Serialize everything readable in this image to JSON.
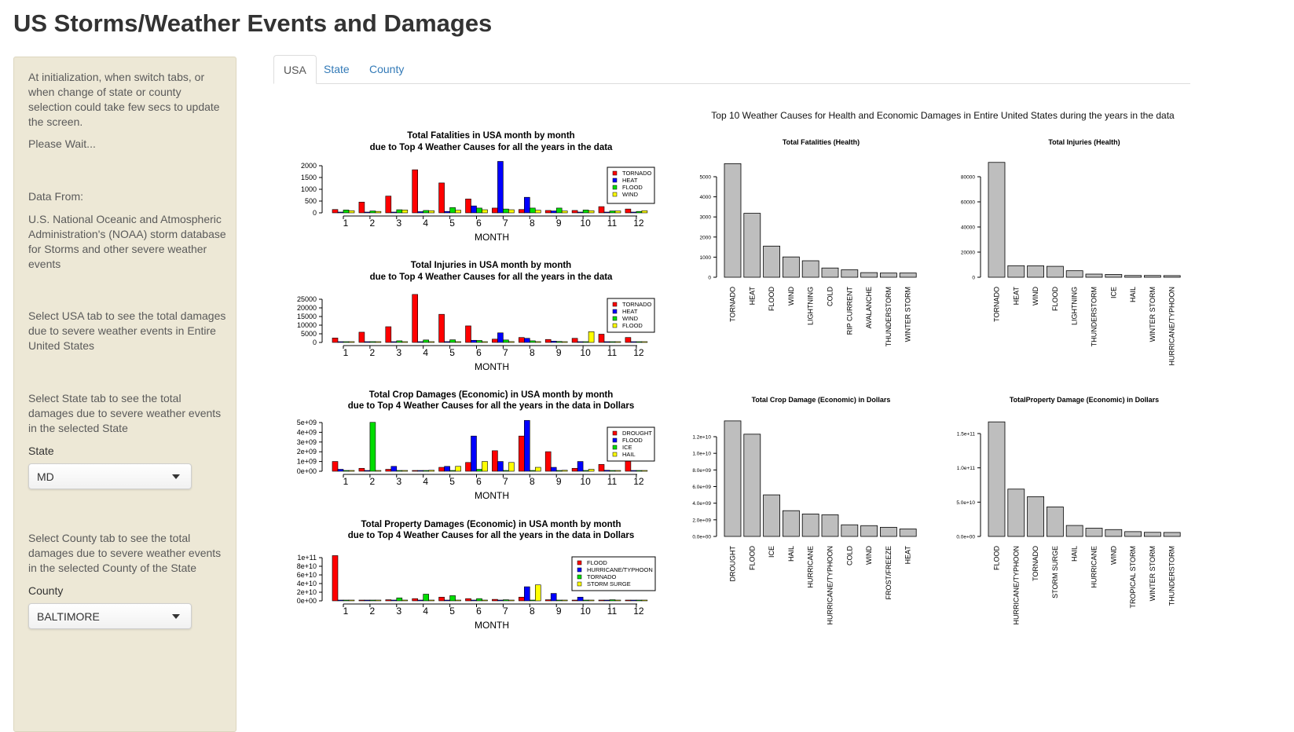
{
  "page": {
    "title": "US Storms/Weather Events and Damages"
  },
  "sidebar": {
    "init_note": "At initialization, when switch tabs, or when change of state or county selection could take few secs to update the screen.",
    "wait_note": "Please Wait...",
    "data_from_label": "Data From:",
    "data_source": "U.S. National Oceanic and Atmospheric Administration's (NOAA) storm database for Storms and other severe weather events",
    "usa_note": "Select USA tab to see the total damages due to severe weather events in Entire United States",
    "state_note": "Select State tab to see the total damages due to severe weather events in the selected State",
    "state_label": "State",
    "state_value": "MD",
    "county_note": "Select County tab to see the total damages due to severe weather events in the selected County of the State",
    "county_label": "County",
    "county_value": "BALTIMORE"
  },
  "tabs": [
    {
      "label": "USA",
      "active": true
    },
    {
      "label": "State",
      "active": false
    },
    {
      "label": "County",
      "active": false
    }
  ],
  "main": {
    "caption": "Top 10 Weather Causes for Health and Economic Damages in Entire United States during the years in the data"
  },
  "colors": {
    "red": "#ff0000",
    "blue": "#0000ff",
    "green": "#00dd00",
    "yellow": "#ffff00",
    "gray": "#bebebe"
  },
  "chart_data": [
    {
      "type": "bar",
      "title": "Total Fatalities in USA month by month\ndue to Top 4 Weather Causes for all the years in the data",
      "xlabel": "MONTH",
      "categories": [
        "1",
        "2",
        "3",
        "4",
        "5",
        "6",
        "7",
        "8",
        "9",
        "10",
        "11",
        "12"
      ],
      "yticks": [
        "2000",
        "1500",
        "1000",
        "500",
        "0"
      ],
      "ylim": [
        0,
        2100
      ],
      "series": [
        {
          "name": "TORNADO",
          "color": "red",
          "values": [
            140,
            450,
            700,
            1800,
            1250,
            580,
            200,
            140,
            100,
            100,
            260,
            160
          ]
        },
        {
          "name": "HEAT",
          "color": "blue",
          "values": [
            20,
            30,
            30,
            50,
            60,
            290,
            2150,
            650,
            80,
            30,
            20,
            20
          ]
        },
        {
          "name": "FLOOD",
          "color": "green",
          "values": [
            120,
            80,
            130,
            100,
            220,
            200,
            160,
            200,
            200,
            120,
            80,
            60
          ]
        },
        {
          "name": "WIND",
          "color": "yellow",
          "values": [
            90,
            60,
            120,
            90,
            110,
            130,
            130,
            110,
            80,
            90,
            80,
            90
          ]
        }
      ]
    },
    {
      "type": "bar",
      "title": "Total Injuries in USA month by month\ndue to Top 4 Weather Causes for all the years in the data",
      "xlabel": "MONTH",
      "categories": [
        "1",
        "2",
        "3",
        "4",
        "5",
        "6",
        "7",
        "8",
        "9",
        "10",
        "11",
        "12"
      ],
      "yticks": [
        "25000",
        "20000",
        "15000",
        "10000",
        "5000",
        "0"
      ],
      "ylim": [
        0,
        28000
      ],
      "series": [
        {
          "name": "TORNADO",
          "color": "red",
          "values": [
            2700,
            6200,
            9500,
            29000,
            17000,
            10000,
            2000,
            3000,
            1800,
            2500,
            5000,
            3000
          ]
        },
        {
          "name": "HEAT",
          "color": "blue",
          "values": [
            100,
            200,
            200,
            300,
            500,
            1300,
            5800,
            2500,
            800,
            400,
            200,
            100
          ]
        },
        {
          "name": "WIND",
          "color": "green",
          "values": [
            400,
            500,
            1000,
            1500,
            1600,
            1200,
            1500,
            1000,
            600,
            400,
            400,
            300
          ]
        },
        {
          "name": "FLOOD",
          "color": "yellow",
          "values": [
            100,
            100,
            200,
            300,
            400,
            400,
            500,
            500,
            300,
            6500,
            300,
            200
          ]
        }
      ]
    },
    {
      "type": "bar",
      "title": "Total Crop Damages (Economic) in USA month by month\ndue to Top 4 Weather Causes for all the years in the data in Dollars",
      "xlabel": "MONTH",
      "categories": [
        "1",
        "2",
        "3",
        "4",
        "5",
        "6",
        "7",
        "8",
        "9",
        "10",
        "11",
        "12"
      ],
      "yticks": [
        "5e+09",
        "4e+09",
        "3e+09",
        "2e+09",
        "1e+09",
        "0e+00"
      ],
      "ylim": [
        0,
        5300000000
      ],
      "series": [
        {
          "name": "DROUGHT",
          "color": "red",
          "values": [
            1000000000,
            300000000,
            200000000,
            50000000,
            400000000,
            900000000,
            2100000000,
            3600000000,
            2000000000,
            300000000,
            700000000,
            1400000000
          ]
        },
        {
          "name": "FLOOD",
          "color": "blue",
          "values": [
            200000000,
            50000000,
            500000000,
            50000000,
            500000000,
            3600000000,
            1000000000,
            5200000000,
            400000000,
            1000000000,
            100000000,
            50000000
          ]
        },
        {
          "name": "ICE",
          "color": "green",
          "values": [
            50000000,
            5000000000,
            50000000,
            20000000,
            20000000,
            200000000,
            50000000,
            50000000,
            50000000,
            50000000,
            20000000,
            20000000
          ]
        },
        {
          "name": "HAIL",
          "color": "yellow",
          "values": [
            20000000,
            20000000,
            50000000,
            100000000,
            500000000,
            1000000000,
            900000000,
            400000000,
            100000000,
            200000000,
            20000000,
            20000000
          ]
        }
      ]
    },
    {
      "type": "bar",
      "title": "Total Property Damages (Economic) in USA month by month\ndue to Top 4 Weather Causes for all the years in the data in Dollars",
      "xlabel": "MONTH",
      "categories": [
        "1",
        "2",
        "3",
        "4",
        "5",
        "6",
        "7",
        "8",
        "9",
        "10",
        "11",
        "12"
      ],
      "yticks": [
        "1e+11",
        "8e+10",
        "6e+10",
        "4e+10",
        "2e+10",
        "0e+00"
      ],
      "ylim": [
        0,
        125000000000
      ],
      "series": [
        {
          "name": "FLOOD",
          "color": "red",
          "values": [
            122000000000,
            1000000000,
            3000000000,
            6000000000,
            10000000000,
            6000000000,
            4000000000,
            10000000000,
            3000000000,
            2000000000,
            1000000000,
            1000000000
          ]
        },
        {
          "name": "HURRICANE/TYPHOON",
          "color": "blue",
          "values": [
            0,
            0,
            0,
            0,
            0,
            2000000000,
            2000000000,
            38000000000,
            20000000000,
            10000000000,
            0,
            0
          ]
        },
        {
          "name": "TORNADO",
          "color": "green",
          "values": [
            1000000000,
            2000000000,
            8000000000,
            18000000000,
            14000000000,
            6000000000,
            3000000000,
            2000000000,
            2000000000,
            1000000000,
            3000000000,
            1000000000
          ]
        },
        {
          "name": "STORM SURGE",
          "color": "yellow",
          "values": [
            0,
            0,
            0,
            0,
            0,
            0,
            1000000000,
            43000000000,
            1000000000,
            0,
            0,
            0
          ]
        }
      ]
    },
    {
      "type": "bar",
      "title": "Total Fatalities (Health)",
      "categories": [
        "TORNADO",
        "HEAT",
        "FLOOD",
        "WIND",
        "LIGHTNING",
        "COLD",
        "RIP CURRENT",
        "AVALANCHE",
        "THUNDERSTORM",
        "WINTER STORM"
      ],
      "values": [
        5650,
        3180,
        1550,
        1010,
        820,
        460,
        370,
        230,
        210,
        210
      ],
      "yticks": [
        "5000",
        "4000",
        "3000",
        "2000",
        "1000",
        "0"
      ],
      "ylim": [
        0,
        5700
      ]
    },
    {
      "type": "bar",
      "title": "Total Injuries (Health)",
      "categories": [
        "TORNADO",
        "HEAT",
        "WIND",
        "FLOOD",
        "LIGHTNING",
        "THUNDERSTORM",
        "ICE",
        "HAIL",
        "WINTER STORM",
        "HURRICANE/TYPHOON"
      ],
      "values": [
        91400,
        9200,
        9100,
        8700,
        5200,
        2500,
        2200,
        1400,
        1400,
        1300
      ],
      "yticks": [
        "80000",
        "60000",
        "40000",
        "20000",
        "0"
      ],
      "ylim": [
        0,
        92000
      ]
    },
    {
      "type": "bar",
      "title": "Total Crop Damage (Economic)  in Dollars",
      "categories": [
        "DROUGHT",
        "FLOOD",
        "ICE",
        "HAIL",
        "HURRICANE",
        "HURRICANE/TYPHOON",
        "COLD",
        "WIND",
        "FROST/FREEZE",
        "HEAT"
      ],
      "values": [
        13900000000,
        12300000000,
        5000000000,
        3100000000,
        2700000000,
        2600000000,
        1400000000,
        1300000000,
        1100000000,
        900000000
      ],
      "yticks": [
        "1.2e+10",
        "1.0e+10",
        "8.0e+09",
        "6.0e+09",
        "4.0e+09",
        "2.0e+09",
        "0.0e+00"
      ],
      "ylim": [
        0,
        14000000000
      ]
    },
    {
      "type": "bar",
      "title": "TotalProperty Damage (Economic)  in Dollars",
      "categories": [
        "FLOOD",
        "HURRICANE/TYPHOON",
        "TORNADO",
        "STORM SURGE",
        "HAIL",
        "HURRICANE",
        "WIND",
        "TROPICAL STORM",
        "WINTER STORM",
        "THUNDERSTORM"
      ],
      "values": [
        167000000000,
        69000000000,
        58000000000,
        43000000000,
        16000000000,
        12000000000,
        10000000000,
        7000000000,
        6000000000,
        5800000000
      ],
      "yticks": [
        "1.5e+11",
        "1.0e+11",
        "5.0e+10",
        "0.0e+00"
      ],
      "ylim": [
        0,
        168000000000
      ]
    }
  ]
}
